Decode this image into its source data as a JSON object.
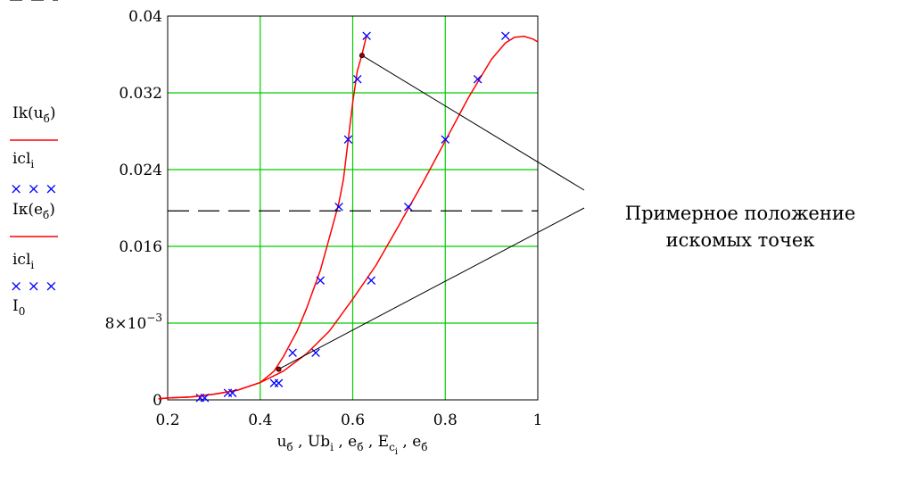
{
  "chart_data": {
    "type": "line",
    "xlabel_parts": [
      {
        "t": "u"
      },
      {
        "t": "б",
        "sub": true
      },
      {
        "t": " , Ub"
      },
      {
        "t": "i",
        "sub": true
      },
      {
        "t": " , e"
      },
      {
        "t": "б",
        "sub": true
      },
      {
        "t": " , E"
      },
      {
        "t": "c",
        "sub": true
      },
      {
        "t": "i",
        "subsub": true
      },
      {
        "t": " , e"
      },
      {
        "t": "б",
        "sub": true
      }
    ],
    "xlim": [
      0.2,
      1.0
    ],
    "ylim": [
      0,
      0.04
    ],
    "x_ticks": [
      0.2,
      0.4,
      0.6,
      0.8,
      1.0
    ],
    "x_tick_labels": [
      "0.2",
      "0.4",
      "0.6",
      "0.8",
      "1"
    ],
    "y_ticks": [
      0,
      0.008,
      0.016,
      0.024,
      0.032,
      0.04
    ],
    "y_tick_labels": [
      "0",
      "8×10",
      "0.016",
      "0.024",
      "0.032",
      "0.04"
    ],
    "y_tick_exponent": "−3",
    "grid": true,
    "grid_color": "#00cc00",
    "series": [
      {
        "legend_label": "Ik(u",
        "legend_sub": "б",
        "legend_tail": ")",
        "style": "line",
        "color": "#ff0000",
        "x": [
          0.18,
          0.2,
          0.25,
          0.3,
          0.35,
          0.4,
          0.43,
          0.45,
          0.48,
          0.5,
          0.53,
          0.55,
          0.57,
          0.58,
          0.59,
          0.6,
          0.61,
          0.62,
          0.63
        ],
        "y": [
          0.0001,
          0.0002,
          0.0003,
          0.0006,
          0.001,
          0.0018,
          0.003,
          0.0045,
          0.0072,
          0.0095,
          0.0135,
          0.017,
          0.0205,
          0.023,
          0.027,
          0.031,
          0.0343,
          0.036,
          0.038
        ]
      },
      {
        "legend_label": "icl",
        "legend_sub": "i",
        "style": "markers",
        "color": "#0000ff",
        "x": [
          0.27,
          0.33,
          0.43,
          0.47,
          0.53,
          0.57,
          0.59,
          0.61,
          0.63
        ],
        "y": [
          0.0003,
          0.0008,
          0.0018,
          0.005,
          0.0125,
          0.0202,
          0.0272,
          0.0335,
          0.038
        ]
      },
      {
        "legend_label": "Iк(e",
        "legend_sub": "б",
        "legend_tail": ")",
        "style": "line",
        "color": "#ff0000",
        "x": [
          0.18,
          0.2,
          0.25,
          0.3,
          0.35,
          0.4,
          0.45,
          0.5,
          0.55,
          0.6,
          0.65,
          0.7,
          0.75,
          0.8,
          0.85,
          0.9,
          0.93,
          0.95,
          0.97,
          0.99,
          1.0
        ],
        "y": [
          0.0001,
          0.0002,
          0.0003,
          0.0006,
          0.001,
          0.0018,
          0.003,
          0.0048,
          0.0072,
          0.0105,
          0.014,
          0.0182,
          0.0225,
          0.027,
          0.0315,
          0.0355,
          0.0372,
          0.0378,
          0.0379,
          0.0376,
          0.0373
        ]
      },
      {
        "legend_label": "icl",
        "legend_sub": "i",
        "style": "markers",
        "color": "#0000ff",
        "x": [
          0.28,
          0.34,
          0.44,
          0.52,
          0.64,
          0.72,
          0.8,
          0.87,
          0.93
        ],
        "y": [
          0.0003,
          0.0008,
          0.0018,
          0.005,
          0.0125,
          0.0202,
          0.0272,
          0.0335,
          0.038
        ]
      },
      {
        "legend_label": "I",
        "legend_sub": "0",
        "style": "dashed",
        "color": "#000000",
        "x": [
          0.2,
          1.0
        ],
        "y": [
          0.0197,
          0.0197
        ]
      }
    ],
    "annotation": {
      "lines": [
        "Примерное положение",
        "искомых точек"
      ],
      "points": [
        {
          "x": 0.62,
          "y": 0.0359
        },
        {
          "x": 0.44,
          "y": 0.0032
        }
      ]
    }
  }
}
